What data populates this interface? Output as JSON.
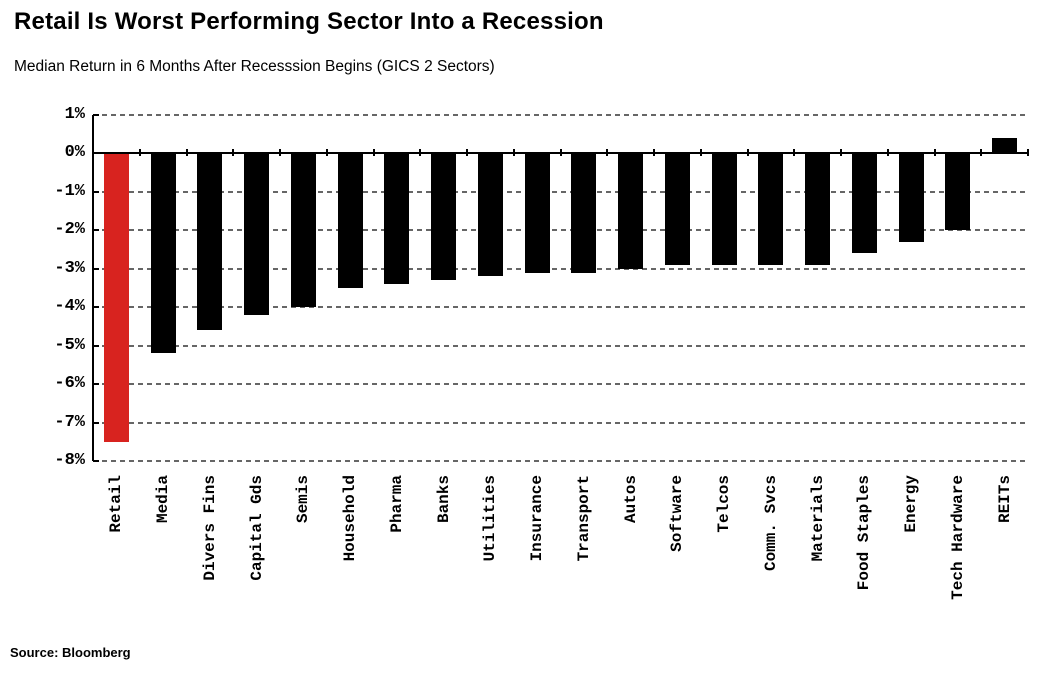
{
  "chart_data": {
    "type": "bar",
    "title": "Retail Is Worst Performing Sector Into a Recession",
    "subtitle": "Median Return in 6 Months After Recesssion Begins (GICS 2 Sectors)",
    "source": "Source: Bloomberg",
    "categories": [
      "Retail",
      "Media",
      "Divers Fins",
      "Capital Gds",
      "Semis",
      "Household",
      "Pharma",
      "Banks",
      "Utilities",
      "Insurance",
      "Transport",
      "Autos",
      "Software",
      "Telcos",
      "Comm. Svcs",
      "Materials",
      "Food Staples",
      "Energy",
      "Tech Hardware",
      "REITs"
    ],
    "values": [
      -7.5,
      -5.2,
      -4.6,
      -4.2,
      -4.0,
      -3.5,
      -3.4,
      -3.3,
      -3.2,
      -3.1,
      -3.1,
      -3.0,
      -2.9,
      -2.9,
      -2.9,
      -2.9,
      -2.6,
      -2.3,
      -2.0,
      0.4
    ],
    "unit": "%",
    "xlabel": "",
    "ylabel": "",
    "ylim": [
      -8,
      1
    ],
    "yticks": [
      1,
      0,
      -1,
      -2,
      -3,
      -4,
      -5,
      -6,
      -7,
      -8
    ],
    "ytick_suffix": "%",
    "grid": "horizontal-dashed",
    "legend": "none",
    "bar_color": "#000000",
    "highlight": {
      "category": "Retail",
      "index": 0,
      "color": "#d8231f"
    },
    "axis_color": "#000000",
    "gridline_color": "#666666"
  }
}
